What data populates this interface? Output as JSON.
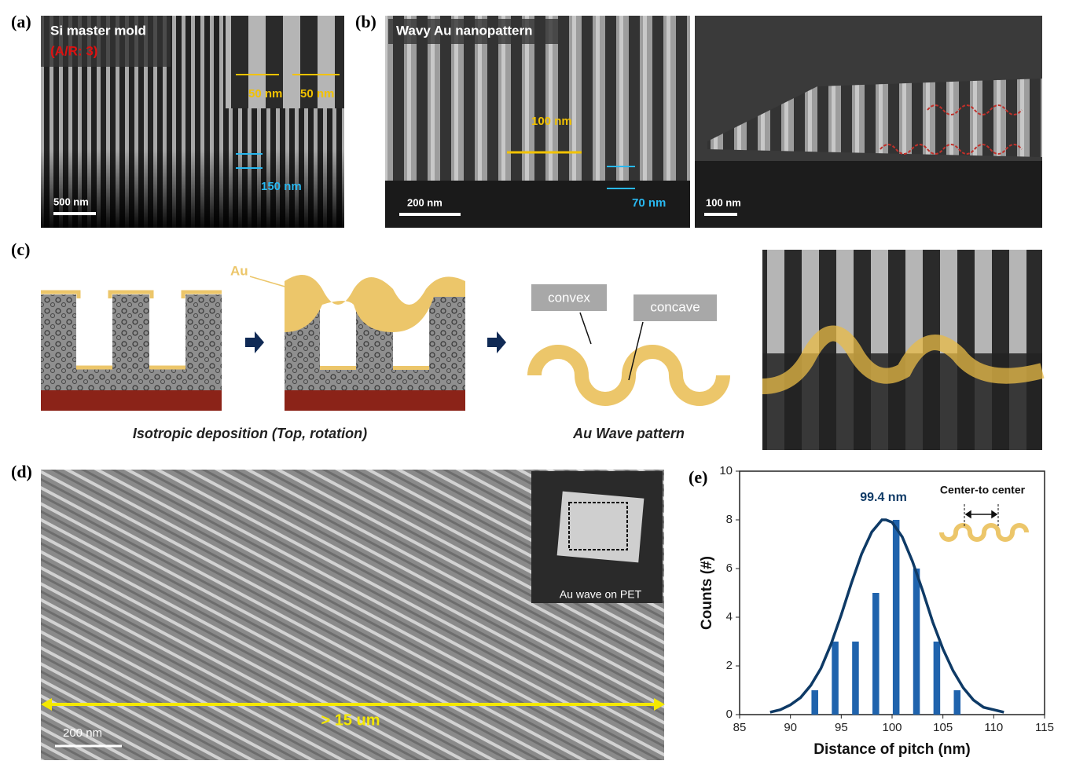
{
  "panels": {
    "a": {
      "label": "(a)",
      "title": "Si master mold",
      "aspect_ratio": "(A/R: 3)",
      "width_1": "50 nm",
      "width_2": "50 nm",
      "depth": "150 nm",
      "scale_bar": "500 nm"
    },
    "b": {
      "label": "(b)",
      "title": "Wavy Au nanopattern",
      "period": "100 nm",
      "amplitude": "70 nm",
      "scale_bar_left": "200 nm",
      "scale_bar_right": "100 nm"
    },
    "c": {
      "label": "(c)",
      "material": "Au",
      "convex": "convex",
      "concave": "concave",
      "caption_left": "Isotropic deposition (Top, rotation)",
      "caption_right": "Au Wave pattern"
    },
    "d": {
      "label": "(d)",
      "inset": "Au wave on PET",
      "span": "> 15 um",
      "scale_bar": "200 nm"
    },
    "e": {
      "label": "(e)"
    }
  },
  "chart_data": {
    "type": "bar",
    "x": [
      92.4,
      94.4,
      96.4,
      98.4,
      100.4,
      102.4,
      104.4,
      106.4
    ],
    "values": [
      1,
      3,
      3,
      5,
      8,
      6,
      3,
      1
    ],
    "color": "#1f63ad",
    "fit_line": {
      "color": "#0e3a66",
      "x": [
        88,
        89,
        90,
        91,
        92,
        93,
        94,
        95,
        96,
        97,
        98,
        99,
        99.4,
        100,
        101,
        102,
        103,
        104,
        105,
        106,
        107,
        108,
        109,
        110,
        111
      ],
      "values": [
        0.1,
        0.2,
        0.4,
        0.7,
        1.2,
        1.9,
        2.9,
        4.1,
        5.4,
        6.6,
        7.5,
        8.0,
        8,
        7.9,
        7.3,
        6.3,
        5.1,
        3.8,
        2.7,
        1.8,
        1.1,
        0.6,
        0.3,
        0.2,
        0.1
      ]
    },
    "peak_label": "99.4 nm",
    "inset_label": "Center-to center",
    "xlabel": "Distance of pitch (nm)",
    "ylabel": "Counts (#)",
    "xlim": [
      85,
      115
    ],
    "xticks": [
      85,
      90,
      95,
      100,
      105,
      110,
      115
    ],
    "ylim": [
      0,
      10
    ],
    "yticks": [
      0,
      2,
      4,
      6,
      8,
      10
    ]
  }
}
